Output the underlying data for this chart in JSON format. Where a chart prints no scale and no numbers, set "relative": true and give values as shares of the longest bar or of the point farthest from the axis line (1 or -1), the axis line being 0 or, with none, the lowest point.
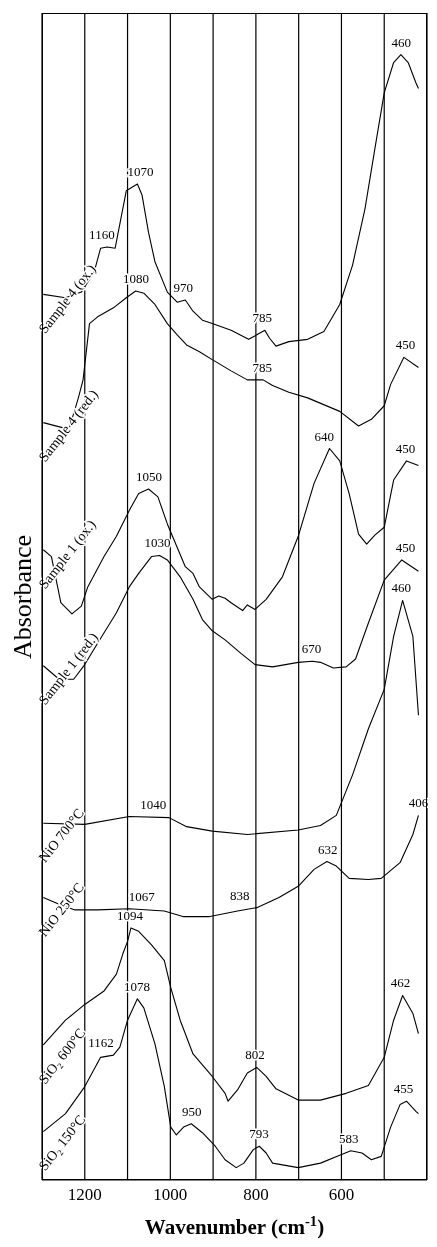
{
  "chart_data": {
    "type": "line",
    "relative": true,
    "xlabel": "Wavenumber (cm$^{-1}$)",
    "ylabel": "Absorbance",
    "xlim": [
      1300,
      400
    ],
    "xticks": [
      {
        "value": 1200,
        "label": "1200"
      },
      {
        "value": 1100,
        "label": null
      },
      {
        "value": 1000,
        "label": "1000"
      },
      {
        "value": 900,
        "label": null
      },
      {
        "value": 800,
        "label": "800"
      },
      {
        "value": 700,
        "label": null
      },
      {
        "value": 600,
        "label": "600"
      },
      {
        "value": 500,
        "label": null
      }
    ],
    "grid": "x",
    "marker": "none",
    "series": [
      {
        "name": "Sample 4 (ox.)",
        "color": "#000000",
        "x": [
          1297,
          1245,
          1208,
          1178,
          1163,
          1148,
          1129,
          1103,
          1077,
          1066,
          1051,
          1036,
          1007,
          984,
          965,
          947,
          925,
          902,
          858,
          817,
          798,
          779,
          768,
          753,
          723,
          679,
          641,
          604,
          574,
          545,
          522,
          500,
          478,
          461,
          444,
          426,
          420
        ],
        "values": [
          0.787,
          0.784,
          0.789,
          0.807,
          0.828,
          0.829,
          0.828,
          0.879,
          0.885,
          0.875,
          0.842,
          0.816,
          0.789,
          0.78,
          0.782,
          0.772,
          0.764,
          0.761,
          0.755,
          0.747,
          0.751,
          0.755,
          0.748,
          0.741,
          0.745,
          0.747,
          0.754,
          0.778,
          0.813,
          0.863,
          0.916,
          0.966,
          0.993,
          1.0,
          0.993,
          0.975,
          0.97
        ]
      },
      {
        "name": "Sample 4 (red.)",
        "color": "#000000",
        "x": [
          1297,
          1237,
          1215,
          1204,
          1189,
          1170,
          1133,
          1103,
          1081,
          1062,
          1036,
          1007,
          984,
          962,
          932,
          902,
          858,
          820,
          783,
          761,
          723,
          679,
          604,
          560,
          530,
          500,
          485,
          454,
          420
        ],
        "values": [
          0.673,
          0.667,
          0.695,
          0.711,
          0.761,
          0.767,
          0.775,
          0.784,
          0.79,
          0.788,
          0.778,
          0.761,
          0.751,
          0.742,
          0.736,
          0.729,
          0.719,
          0.711,
          0.711,
          0.706,
          0.7,
          0.695,
          0.683,
          0.67,
          0.676,
          0.688,
          0.707,
          0.731,
          0.722
        ]
      },
      {
        "name": "Sample 1 (ox.)",
        "color": "#000000",
        "x": [
          1297,
          1278,
          1256,
          1230,
          1208,
          1193,
          1155,
          1126,
          1096,
          1074,
          1051,
          1029,
          1007,
          965,
          947,
          932,
          902,
          887,
          872,
          858,
          831,
          820,
          802,
          776,
          738,
          701,
          664,
          628,
          604,
          582,
          560,
          541,
          522,
          500,
          478,
          448,
          420
        ],
        "values": [
          0.56,
          0.554,
          0.513,
          0.503,
          0.51,
          0.527,
          0.554,
          0.572,
          0.595,
          0.61,
          0.614,
          0.607,
          0.583,
          0.545,
          0.539,
          0.527,
          0.516,
          0.519,
          0.517,
          0.513,
          0.506,
          0.511,
          0.507,
          0.516,
          0.536,
          0.572,
          0.619,
          0.65,
          0.639,
          0.61,
          0.574,
          0.565,
          0.573,
          0.58,
          0.622,
          0.639,
          0.635
        ]
      },
      {
        "name": "Sample 1 (red.)",
        "color": "#000000",
        "x": [
          1297,
          1260,
          1226,
          1200,
          1170,
          1126,
          1096,
          1074,
          1044,
          1025,
          1007,
          977,
          947,
          925,
          902,
          872,
          835,
          802,
          761,
          701,
          668,
          649,
          619,
          589,
          567,
          537,
          500,
          459,
          420
        ],
        "values": [
          0.457,
          0.445,
          0.445,
          0.458,
          0.477,
          0.504,
          0.527,
          0.539,
          0.554,
          0.555,
          0.551,
          0.536,
          0.516,
          0.498,
          0.488,
          0.48,
          0.468,
          0.458,
          0.456,
          0.46,
          0.461,
          0.46,
          0.455,
          0.456,
          0.463,
          0.495,
          0.533,
          0.551,
          0.541
        ]
      },
      {
        "name": "NiO 700°C",
        "color": "#000000",
        "x": [
          1297,
          1200,
          1096,
          1003,
          962,
          902,
          820,
          701,
          649,
          612,
          574,
          537,
          500,
          478,
          457,
          433,
          420
        ],
        "values": [
          0.317,
          0.316,
          0.323,
          0.322,
          0.314,
          0.31,
          0.307,
          0.311,
          0.315,
          0.324,
          0.36,
          0.401,
          0.436,
          0.483,
          0.515,
          0.483,
          0.413
        ]
      },
      {
        "name": "NiO 250°C",
        "color": "#000000",
        "x": [
          1297,
          1260,
          1223,
          1170,
          1096,
          1014,
          969,
          910,
          843,
          798,
          746,
          701,
          664,
          634,
          612,
          582,
          537,
          507,
          463,
          433,
          420
        ],
        "values": [
          0.251,
          0.245,
          0.24,
          0.24,
          0.241,
          0.239,
          0.234,
          0.234,
          0.239,
          0.242,
          0.251,
          0.261,
          0.276,
          0.283,
          0.279,
          0.268,
          0.267,
          0.268,
          0.282,
          0.307,
          0.324
        ]
      },
      {
        "name": "SiO₂ 600°C",
        "color": "#000000",
        "x": [
          1297,
          1245,
          1200,
          1155,
          1126,
          1111,
          1100,
          1092,
          1074,
          1044,
          1014,
          999,
          977,
          947,
          902,
          872,
          865,
          843,
          820,
          798,
          776,
          753,
          701,
          649,
          589,
          537,
          500,
          478,
          457,
          433,
          420
        ],
        "values": [
          0.12,
          0.142,
          0.156,
          0.168,
          0.183,
          0.201,
          0.212,
          0.224,
          0.221,
          0.209,
          0.195,
          0.171,
          0.142,
          0.112,
          0.092,
          0.077,
          0.07,
          0.08,
          0.095,
          0.1,
          0.092,
          0.081,
          0.071,
          0.071,
          0.077,
          0.084,
          0.109,
          0.142,
          0.164,
          0.148,
          0.13
        ]
      },
      {
        "name": "SiO₂ 150°C",
        "color": "#000000",
        "x": [
          1297,
          1245,
          1200,
          1163,
          1133,
          1118,
          1100,
          1077,
          1062,
          1036,
          1014,
          999,
          986,
          969,
          951,
          925,
          895,
          872,
          846,
          828,
          806,
          792,
          776,
          761,
          701,
          649,
          604,
          578,
          552,
          530,
          507,
          485,
          463,
          448,
          426,
          420
        ],
        "values": [
          0.043,
          0.059,
          0.083,
          0.109,
          0.111,
          0.118,
          0.142,
          0.161,
          0.153,
          0.121,
          0.083,
          0.047,
          0.04,
          0.047,
          0.05,
          0.042,
          0.03,
          0.018,
          0.011,
          0.015,
          0.027,
          0.03,
          0.024,
          0.015,
          0.011,
          0.015,
          0.022,
          0.026,
          0.024,
          0.018,
          0.021,
          0.047,
          0.067,
          0.07,
          0.061,
          0.059
        ]
      }
    ],
    "annotations": [
      {
        "text": "460",
        "x": 460,
        "y": 1.0
      },
      {
        "text": "1070",
        "x": 1070,
        "y": 0.885
      },
      {
        "text": "1160",
        "x": 1160,
        "y": 0.829
      },
      {
        "text": "970",
        "x": 970,
        "y": 0.782
      },
      {
        "text": "785",
        "x": 785,
        "y": 0.755
      },
      {
        "text": "1080",
        "x": 1080,
        "y": 0.79
      },
      {
        "text": "785",
        "x": 785,
        "y": 0.711
      },
      {
        "text": "450",
        "x": 450,
        "y": 0.731
      },
      {
        "text": "1050",
        "x": 1050,
        "y": 0.614
      },
      {
        "text": "640",
        "x": 640,
        "y": 0.65
      },
      {
        "text": "450",
        "x": 450,
        "y": 0.639
      },
      {
        "text": "1030",
        "x": 1030,
        "y": 0.555
      },
      {
        "text": "670",
        "x": 670,
        "y": 0.461
      },
      {
        "text": "450",
        "x": 450,
        "y": 0.551
      },
      {
        "text": "460",
        "x": 460,
        "y": 0.515
      },
      {
        "text": "1040",
        "x": 1040,
        "y": 0.323
      },
      {
        "text": "406",
        "x": 420,
        "y": 0.324
      },
      {
        "text": "632",
        "x": 632,
        "y": 0.283
      },
      {
        "text": "1067",
        "x": 1067,
        "y": 0.241
      },
      {
        "text": "838",
        "x": 838,
        "y": 0.242
      },
      {
        "text": "1094",
        "x": 1094,
        "y": 0.224
      },
      {
        "text": "802",
        "x": 802,
        "y": 0.1
      },
      {
        "text": "462",
        "x": 462,
        "y": 0.164
      },
      {
        "text": "1078",
        "x": 1078,
        "y": 0.161
      },
      {
        "text": "1162",
        "x": 1162,
        "y": 0.111
      },
      {
        "text": "950",
        "x": 950,
        "y": 0.05
      },
      {
        "text": "793",
        "x": 793,
        "y": 0.03
      },
      {
        "text": "583",
        "x": 583,
        "y": 0.026
      },
      {
        "text": "455",
        "x": 455,
        "y": 0.07
      }
    ]
  }
}
